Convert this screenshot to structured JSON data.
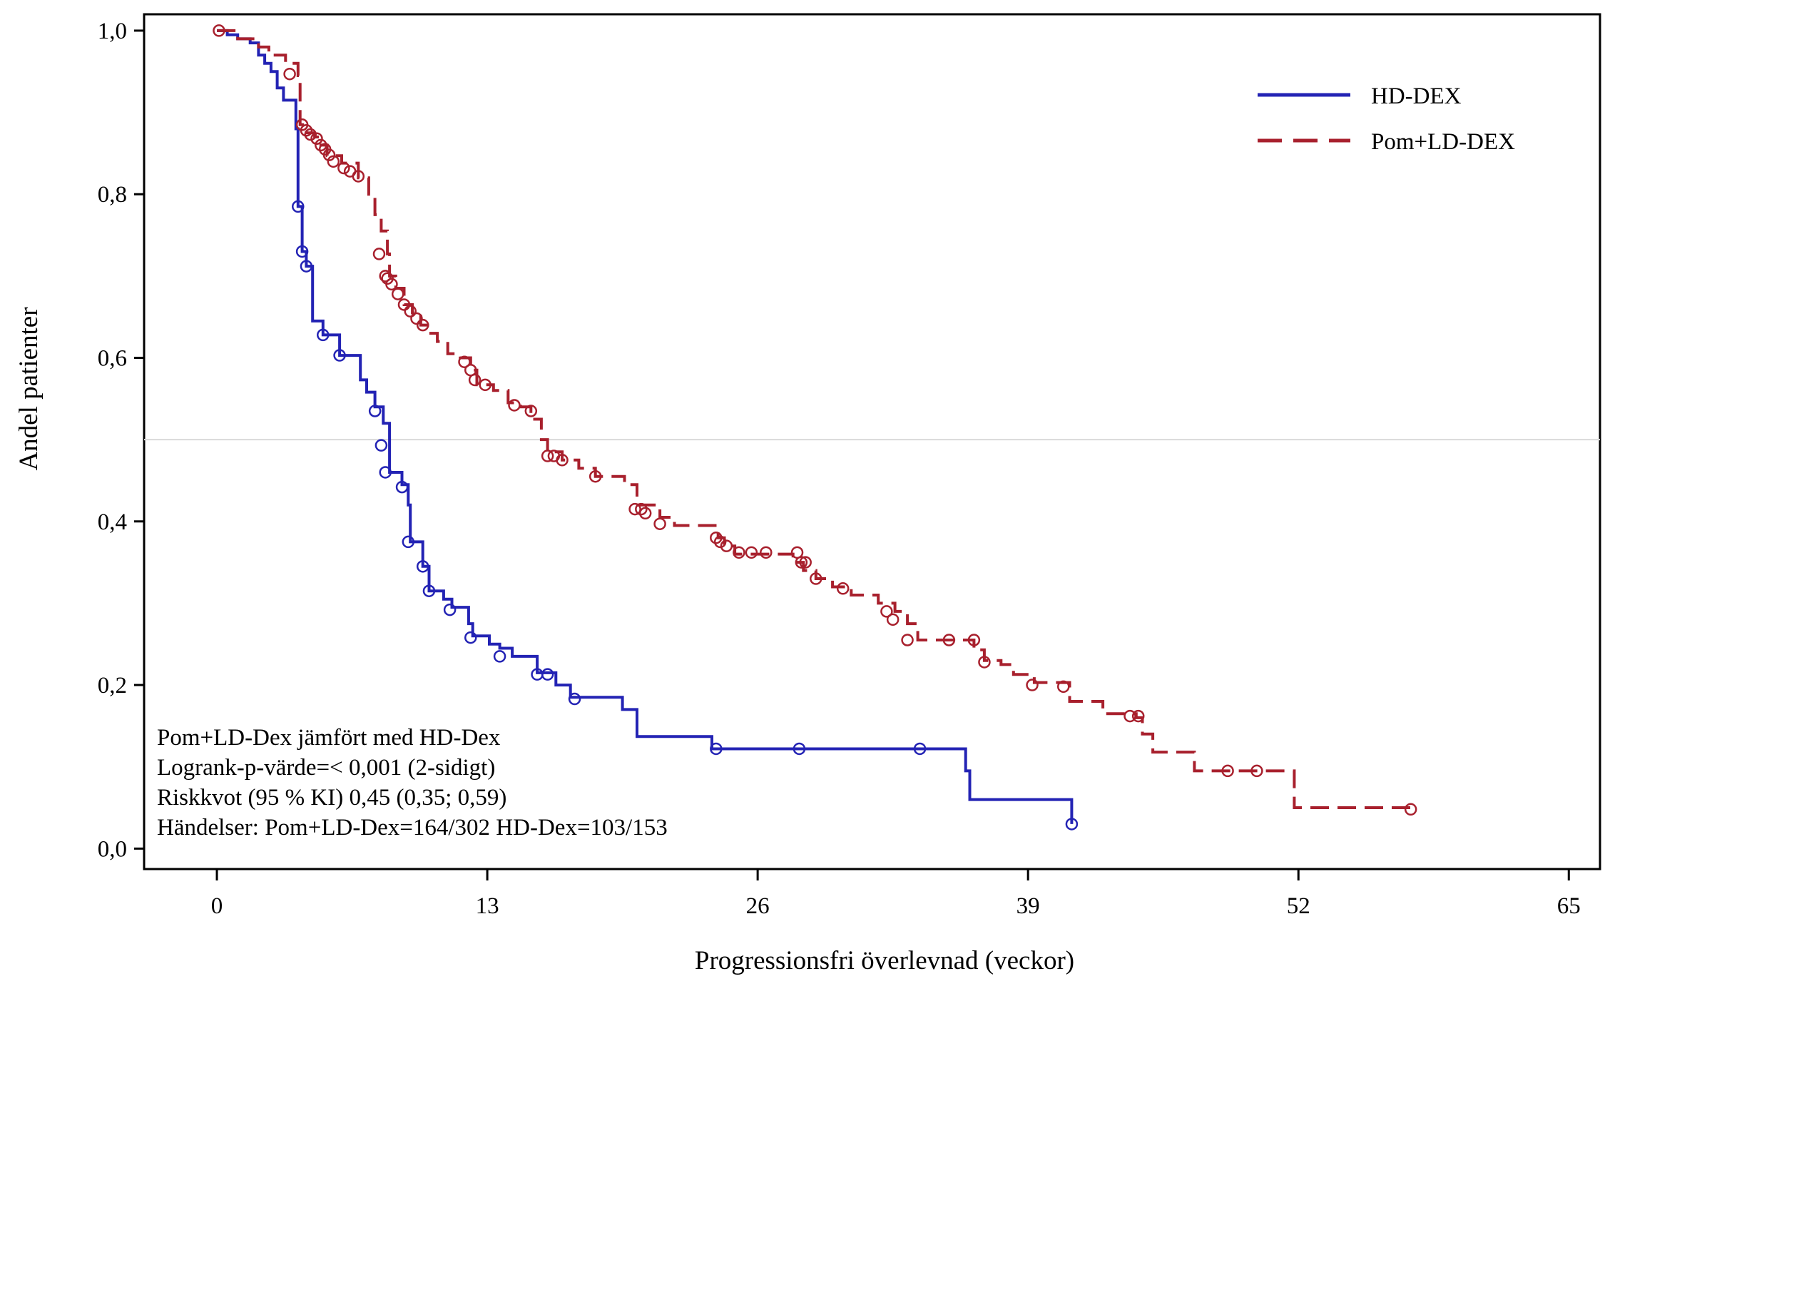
{
  "chart_data": {
    "type": "line",
    "xlabel": "Progressionsfri överlevnad (veckor)",
    "ylabel": "Andel patienter",
    "xlim": [
      -3.5,
      66.5
    ],
    "ylim": [
      -0.025,
      1.02
    ],
    "xticks": [
      0,
      13,
      26,
      39,
      52,
      65
    ],
    "xtick_labels": [
      "0",
      "13",
      "26",
      "39",
      "52",
      "65"
    ],
    "yticks": [
      0.0,
      0.2,
      0.4,
      0.6,
      0.8,
      1.0
    ],
    "ytick_labels": [
      "0,0",
      "0,2",
      "0,4",
      "0,6",
      "0,8",
      "1,0"
    ],
    "reference_line_y": 0.5,
    "legend_position": "top-right",
    "legend": [
      {
        "label": "HD-DEX",
        "color": "#2323b4",
        "dash": "solid"
      },
      {
        "label": "Pom+LD-DEX",
        "color": "#a8202d",
        "dash": "dashed"
      }
    ],
    "annotations": [
      "Pom+LD-Dex jämfört med HD-Dex",
      "Logrank-p-värde=< 0,001 (2-sidigt)",
      "Riskkvot (95 % KI) 0,45 (0,35; 0,59)",
      "Händelser: Pom+LD-Dex=164/302 HD-Dex=103/153"
    ],
    "series": [
      {
        "name": "HD-DEX",
        "color": "#2323b4",
        "dash": "solid",
        "step_points": [
          [
            0,
            1.0
          ],
          [
            0.5,
            0.995
          ],
          [
            1.0,
            0.99
          ],
          [
            1.6,
            0.985
          ],
          [
            2.0,
            0.97
          ],
          [
            2.3,
            0.96
          ],
          [
            2.6,
            0.95
          ],
          [
            2.9,
            0.93
          ],
          [
            3.2,
            0.915
          ],
          [
            3.8,
            0.88
          ],
          [
            3.9,
            0.785
          ],
          [
            4.1,
            0.73
          ],
          [
            4.3,
            0.712
          ],
          [
            4.6,
            0.645
          ],
          [
            5.1,
            0.628
          ],
          [
            5.9,
            0.603
          ],
          [
            6.9,
            0.573
          ],
          [
            7.2,
            0.558
          ],
          [
            7.6,
            0.54
          ],
          [
            8.0,
            0.52
          ],
          [
            8.3,
            0.46
          ],
          [
            8.9,
            0.445
          ],
          [
            9.2,
            0.42
          ],
          [
            9.3,
            0.375
          ],
          [
            9.9,
            0.345
          ],
          [
            10.2,
            0.315
          ],
          [
            10.9,
            0.305
          ],
          [
            11.3,
            0.295
          ],
          [
            12.1,
            0.275
          ],
          [
            12.3,
            0.26
          ],
          [
            13.1,
            0.25
          ],
          [
            13.6,
            0.245
          ],
          [
            14.2,
            0.235
          ],
          [
            15.4,
            0.215
          ],
          [
            16.3,
            0.2
          ],
          [
            17.0,
            0.185
          ],
          [
            19.5,
            0.17
          ],
          [
            20.2,
            0.137
          ],
          [
            23.8,
            0.122
          ],
          [
            26.5,
            0.122
          ],
          [
            32.8,
            0.122
          ],
          [
            36.0,
            0.095
          ],
          [
            36.2,
            0.06
          ],
          [
            41.1,
            0.03
          ]
        ],
        "censored": [
          [
            3.9,
            0.785
          ],
          [
            4.1,
            0.73
          ],
          [
            4.3,
            0.712
          ],
          [
            5.1,
            0.628
          ],
          [
            5.9,
            0.603
          ],
          [
            7.6,
            0.535
          ],
          [
            7.9,
            0.493
          ],
          [
            8.1,
            0.46
          ],
          [
            8.9,
            0.442
          ],
          [
            9.2,
            0.375
          ],
          [
            9.9,
            0.345
          ],
          [
            10.2,
            0.315
          ],
          [
            11.2,
            0.292
          ],
          [
            12.2,
            0.258
          ],
          [
            13.6,
            0.235
          ],
          [
            15.4,
            0.213
          ],
          [
            15.9,
            0.213
          ],
          [
            17.2,
            0.183
          ],
          [
            24.0,
            0.122
          ],
          [
            28.0,
            0.122
          ],
          [
            33.8,
            0.122
          ],
          [
            41.1,
            0.03
          ]
        ]
      },
      {
        "name": "Pom+LD-DEX",
        "color": "#a8202d",
        "dash": "dashed",
        "step_points": [
          [
            0,
            1.0
          ],
          [
            1.0,
            0.99
          ],
          [
            2.0,
            0.98
          ],
          [
            2.5,
            0.97
          ],
          [
            3.3,
            0.96
          ],
          [
            3.9,
            0.945
          ],
          [
            4.0,
            0.885
          ],
          [
            4.3,
            0.875
          ],
          [
            4.7,
            0.87
          ],
          [
            5.0,
            0.86
          ],
          [
            5.3,
            0.847
          ],
          [
            6.0,
            0.838
          ],
          [
            6.8,
            0.82
          ],
          [
            7.3,
            0.8
          ],
          [
            7.6,
            0.775
          ],
          [
            7.9,
            0.755
          ],
          [
            8.2,
            0.727
          ],
          [
            8.3,
            0.7
          ],
          [
            8.6,
            0.685
          ],
          [
            9.0,
            0.665
          ],
          [
            9.4,
            0.655
          ],
          [
            9.8,
            0.64
          ],
          [
            10.2,
            0.63
          ],
          [
            10.6,
            0.62
          ],
          [
            11.1,
            0.605
          ],
          [
            11.7,
            0.6
          ],
          [
            12.2,
            0.585
          ],
          [
            12.5,
            0.567
          ],
          [
            13.3,
            0.56
          ],
          [
            14.0,
            0.545
          ],
          [
            14.6,
            0.54
          ],
          [
            15.1,
            0.525
          ],
          [
            15.6,
            0.5
          ],
          [
            15.9,
            0.485
          ],
          [
            16.6,
            0.475
          ],
          [
            17.4,
            0.465
          ],
          [
            18.2,
            0.455
          ],
          [
            19.6,
            0.445
          ],
          [
            20.2,
            0.42
          ],
          [
            21.3,
            0.405
          ],
          [
            22.0,
            0.395
          ],
          [
            23.8,
            0.395
          ],
          [
            24.1,
            0.38
          ],
          [
            24.4,
            0.37
          ],
          [
            24.9,
            0.36
          ],
          [
            26.9,
            0.36
          ],
          [
            27.7,
            0.35
          ],
          [
            28.2,
            0.34
          ],
          [
            28.8,
            0.33
          ],
          [
            29.6,
            0.32
          ],
          [
            30.5,
            0.31
          ],
          [
            31.8,
            0.3
          ],
          [
            32.6,
            0.29
          ],
          [
            33.2,
            0.275
          ],
          [
            33.7,
            0.255
          ],
          [
            36.0,
            0.255
          ],
          [
            36.4,
            0.243
          ],
          [
            36.9,
            0.23
          ],
          [
            37.7,
            0.225
          ],
          [
            38.3,
            0.213
          ],
          [
            39.3,
            0.203
          ],
          [
            41.0,
            0.18
          ],
          [
            42.6,
            0.165
          ],
          [
            44.2,
            0.16
          ],
          [
            44.5,
            0.14
          ],
          [
            45.0,
            0.118
          ],
          [
            47.0,
            0.095
          ],
          [
            51.8,
            0.05
          ],
          [
            57.4,
            0.048
          ]
        ],
        "censored": [
          [
            0.1,
            1.0
          ],
          [
            3.5,
            0.947
          ],
          [
            4.1,
            0.885
          ],
          [
            4.3,
            0.878
          ],
          [
            4.5,
            0.873
          ],
          [
            4.8,
            0.868
          ],
          [
            5.0,
            0.86
          ],
          [
            5.2,
            0.855
          ],
          [
            5.4,
            0.848
          ],
          [
            5.6,
            0.84
          ],
          [
            6.1,
            0.832
          ],
          [
            6.4,
            0.828
          ],
          [
            6.8,
            0.822
          ],
          [
            7.8,
            0.727
          ],
          [
            8.1,
            0.7
          ],
          [
            8.2,
            0.697
          ],
          [
            8.4,
            0.69
          ],
          [
            8.7,
            0.678
          ],
          [
            9.0,
            0.665
          ],
          [
            9.3,
            0.657
          ],
          [
            9.6,
            0.648
          ],
          [
            9.9,
            0.64
          ],
          [
            11.9,
            0.595
          ],
          [
            12.2,
            0.585
          ],
          [
            12.4,
            0.573
          ],
          [
            12.9,
            0.567
          ],
          [
            14.3,
            0.542
          ],
          [
            15.1,
            0.535
          ],
          [
            15.9,
            0.48
          ],
          [
            16.2,
            0.48
          ],
          [
            16.6,
            0.475
          ],
          [
            18.2,
            0.455
          ],
          [
            20.1,
            0.415
          ],
          [
            20.4,
            0.415
          ],
          [
            20.6,
            0.41
          ],
          [
            21.3,
            0.397
          ],
          [
            24.0,
            0.38
          ],
          [
            24.2,
            0.375
          ],
          [
            24.5,
            0.37
          ],
          [
            25.1,
            0.362
          ],
          [
            25.7,
            0.362
          ],
          [
            26.4,
            0.362
          ],
          [
            27.9,
            0.362
          ],
          [
            28.1,
            0.35
          ],
          [
            28.3,
            0.35
          ],
          [
            28.8,
            0.33
          ],
          [
            30.1,
            0.318
          ],
          [
            32.2,
            0.29
          ],
          [
            32.5,
            0.28
          ],
          [
            33.2,
            0.255
          ],
          [
            35.2,
            0.255
          ],
          [
            36.4,
            0.255
          ],
          [
            36.9,
            0.228
          ],
          [
            39.2,
            0.2
          ],
          [
            40.7,
            0.198
          ],
          [
            43.9,
            0.162
          ],
          [
            44.3,
            0.162
          ],
          [
            48.6,
            0.095
          ],
          [
            50.0,
            0.095
          ],
          [
            57.4,
            0.048
          ]
        ]
      }
    ]
  }
}
